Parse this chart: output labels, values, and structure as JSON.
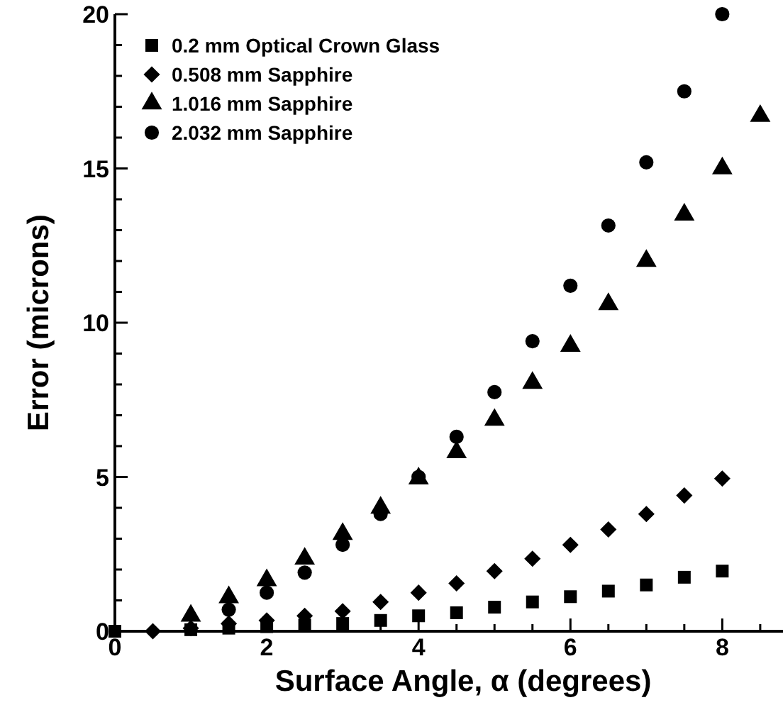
{
  "chart_data": {
    "type": "scatter",
    "xlabel": "Surface Angle, α (degrees)",
    "ylabel": "Error (microns)",
    "xlim": [
      0,
      8.8
    ],
    "ylim": [
      0,
      20
    ],
    "xticks": [
      0,
      {
        "value": 0.5,
        "label": null
      },
      {
        "value": 1,
        "label": null
      },
      {
        "value": 1.5,
        "label": null
      },
      2,
      {
        "value": 2.5,
        "label": null
      },
      {
        "value": 3,
        "label": null
      },
      {
        "value": 3.5,
        "label": null
      },
      4,
      {
        "value": 4.5,
        "label": null
      },
      {
        "value": 5,
        "label": null
      },
      {
        "value": 5.5,
        "label": null
      },
      6,
      {
        "value": 6.5,
        "label": null
      },
      {
        "value": 7,
        "label": null
      },
      {
        "value": 7.5,
        "label": null
      },
      8,
      {
        "value": 8.5,
        "label": null
      }
    ],
    "yticks": [
      0,
      {
        "value": 1,
        "label": null
      },
      {
        "value": 2,
        "label": null
      },
      {
        "value": 3,
        "label": null
      },
      {
        "value": 4,
        "label": null
      },
      5,
      {
        "value": 6,
        "label": null
      },
      {
        "value": 7,
        "label": null
      },
      {
        "value": 8,
        "label": null
      },
      {
        "value": 9,
        "label": null
      },
      10,
      {
        "value": 11,
        "label": null
      },
      {
        "value": 12,
        "label": null
      },
      {
        "value": 13,
        "label": null
      },
      {
        "value": 14,
        "label": null
      },
      15,
      {
        "value": 16,
        "label": null
      },
      {
        "value": 17,
        "label": null
      },
      {
        "value": 18,
        "label": null
      },
      {
        "value": 19,
        "label": null
      },
      20
    ],
    "legend": "top left",
    "grid": false,
    "series": [
      {
        "name": "0.2 mm Optical Crown Glass",
        "color": "#000000",
        "marker": "square",
        "x": [
          0,
          1,
          1.5,
          2,
          2.5,
          3,
          3.5,
          4,
          4.5,
          5,
          5.5,
          6,
          6.5,
          7,
          7.5,
          8
        ],
        "values": [
          0,
          0.05,
          0.1,
          0.15,
          0.2,
          0.25,
          0.35,
          0.5,
          0.6,
          0.78,
          0.95,
          1.12,
          1.3,
          1.5,
          1.75,
          1.95
        ]
      },
      {
        "name": "0.508 mm Sapphire",
        "color": "#000000",
        "marker": "diamond",
        "x": [
          0.5,
          1,
          1.5,
          2,
          2.5,
          3,
          3.5,
          4,
          4.5,
          5,
          5.5,
          6,
          6.5,
          7,
          7.5,
          8
        ],
        "values": [
          0,
          0.1,
          0.25,
          0.35,
          0.5,
          0.65,
          0.95,
          1.25,
          1.55,
          1.95,
          2.35,
          2.8,
          3.3,
          3.8,
          4.4,
          4.95
        ]
      },
      {
        "name": "1.016 mm Sapphire",
        "color": "#000000",
        "marker": "triangle",
        "x": [
          1,
          1.5,
          2,
          2.5,
          3,
          3.5,
          4,
          4.5,
          5,
          5.5,
          6,
          6.5,
          7,
          7.5,
          8,
          8.5
        ],
        "values": [
          0.5,
          1.1,
          1.65,
          2.35,
          3.15,
          4,
          4.95,
          5.8,
          6.85,
          8.05,
          9.25,
          10.6,
          12,
          13.5,
          15,
          16.7
        ]
      },
      {
        "name": "2.032 mm Sapphire",
        "color": "#000000",
        "marker": "circle",
        "x": [
          1.5,
          2,
          2.5,
          3,
          3.5,
          4,
          4.5,
          5,
          5.5,
          6,
          6.5,
          7,
          7.5,
          8
        ],
        "values": [
          0.7,
          1.25,
          1.9,
          2.8,
          3.8,
          5,
          6.3,
          7.75,
          9.4,
          11.2,
          13.15,
          15.2,
          17.5,
          20
        ]
      }
    ]
  }
}
